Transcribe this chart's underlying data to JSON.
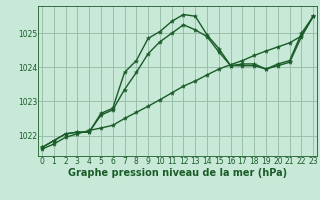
{
  "bg_color": "#c8e8d8",
  "grid_color": "#9abfaa",
  "line_color": "#1a5c28",
  "xlabel": "Graphe pression niveau de la mer (hPa)",
  "xlabel_fontsize": 7,
  "tick_fontsize": 5.5,
  "ylim": [
    1021.4,
    1025.8
  ],
  "xlim": [
    -0.3,
    23.3
  ],
  "yticks": [
    1022,
    1023,
    1024,
    1025
  ],
  "xticks": [
    0,
    1,
    2,
    3,
    4,
    5,
    6,
    7,
    8,
    9,
    10,
    11,
    12,
    13,
    14,
    15,
    16,
    17,
    18,
    19,
    20,
    21,
    22,
    23
  ],
  "series1_x": [
    0,
    1,
    2,
    3,
    4,
    5,
    6,
    7,
    8,
    9,
    10,
    11,
    12,
    13,
    14,
    15,
    16,
    17,
    18,
    19,
    20,
    21,
    22,
    23
  ],
  "series1_y": [
    1021.65,
    1021.85,
    1022.05,
    1022.1,
    1022.1,
    1022.65,
    1022.8,
    1023.85,
    1024.2,
    1024.85,
    1025.05,
    1025.35,
    1025.55,
    1025.5,
    1024.95,
    1024.55,
    1024.05,
    1024.1,
    1024.1,
    1023.95,
    1024.1,
    1024.2,
    1025.0,
    1025.5
  ],
  "series2_x": [
    0,
    1,
    2,
    3,
    4,
    5,
    6,
    7,
    8,
    9,
    10,
    11,
    12,
    13,
    14,
    15,
    16,
    17,
    18,
    19,
    20,
    21,
    22,
    23
  ],
  "series2_y": [
    1021.65,
    1021.85,
    1022.05,
    1022.1,
    1022.1,
    1022.6,
    1022.75,
    1023.35,
    1023.85,
    1024.4,
    1024.75,
    1025.0,
    1025.25,
    1025.1,
    1024.9,
    1024.45,
    1024.05,
    1024.05,
    1024.05,
    1023.95,
    1024.05,
    1024.15,
    1024.9,
    1025.5
  ],
  "series3_x": [
    0,
    1,
    2,
    3,
    4,
    5,
    6,
    7,
    8,
    9,
    10,
    11,
    12,
    13,
    14,
    15,
    16,
    17,
    18,
    19,
    20,
    21,
    22,
    23
  ],
  "series3_y": [
    1021.6,
    1021.75,
    1021.95,
    1022.05,
    1022.15,
    1022.22,
    1022.3,
    1022.5,
    1022.68,
    1022.86,
    1023.05,
    1023.25,
    1023.45,
    1023.6,
    1023.78,
    1023.95,
    1024.08,
    1024.2,
    1024.35,
    1024.48,
    1024.6,
    1024.72,
    1024.92,
    1025.5
  ]
}
